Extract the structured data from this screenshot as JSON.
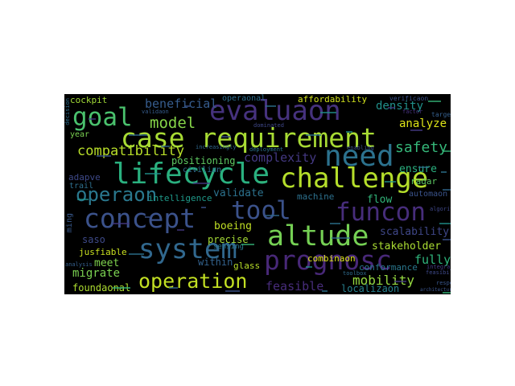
{
  "cloud": {
    "words": [
      {
        "text": "case requirement",
        "color": "#a8db34"
      },
      {
        "text": "evaluaon",
        "color": "#46327e"
      },
      {
        "text": "lifecycle",
        "color": "#2ab07f"
      },
      {
        "text": "challenge",
        "color": "#b5de2b"
      },
      {
        "text": "need",
        "color": "#2c728e"
      },
      {
        "text": "concept",
        "color": "#3b528b"
      },
      {
        "text": "altude",
        "color": "#75d054"
      },
      {
        "text": "system",
        "color": "#31688e"
      },
      {
        "text": "prognosc",
        "color": "#482878"
      },
      {
        "text": "funcon",
        "color": "#472d7b"
      },
      {
        "text": "tool",
        "color": "#3b528b"
      },
      {
        "text": "goal",
        "color": "#4ac16d"
      },
      {
        "text": "model",
        "color": "#86d549"
      },
      {
        "text": "operaon",
        "color": "#2a788e"
      },
      {
        "text": "operation",
        "color": "#c2df23"
      },
      {
        "text": "compatibility",
        "color": "#b8de29"
      },
      {
        "text": "beneficial",
        "color": "#365c8d"
      },
      {
        "text": "complexity",
        "color": "#443983"
      },
      {
        "text": "safety",
        "color": "#35b779"
      },
      {
        "text": "density",
        "color": "#21918c"
      },
      {
        "text": "analyze",
        "color": "#dde318"
      },
      {
        "text": "affordability",
        "color": "#d0e11c"
      },
      {
        "text": "operaonal",
        "color": "#2e6e8e"
      },
      {
        "text": "cockpit",
        "color": "#a2da37"
      },
      {
        "text": "positioning",
        "color": "#5ec962"
      },
      {
        "text": "ensure",
        "color": "#2ab07f"
      },
      {
        "text": "validate",
        "color": "#2c728e"
      },
      {
        "text": "adapve",
        "color": "#3e4989"
      },
      {
        "text": "civilian",
        "color": "#2f6c8e"
      },
      {
        "text": "trail",
        "color": "#2e6f8e"
      },
      {
        "text": "intelligence",
        "color": "#1f9a8a"
      },
      {
        "text": "boeing",
        "color": "#c0df25"
      },
      {
        "text": "precise",
        "color": "#a5db36"
      },
      {
        "text": "saso",
        "color": "#3e4a89"
      },
      {
        "text": "meet",
        "color": "#7fd34e"
      },
      {
        "text": "within",
        "color": "#33628d"
      },
      {
        "text": "migrate",
        "color": "#7ad151"
      },
      {
        "text": "jusfiable",
        "color": "#c8e020"
      },
      {
        "text": "foundaonal",
        "color": "#addc30"
      },
      {
        "text": "glass",
        "color": "#b8de29"
      },
      {
        "text": "feasible",
        "color": "#472c7a"
      },
      {
        "text": "mobility",
        "color": "#95d840"
      },
      {
        "text": "localizaon",
        "color": "#27808e"
      },
      {
        "text": "fully",
        "color": "#2fb47c"
      },
      {
        "text": "stakeholder",
        "color": "#aadc32"
      },
      {
        "text": "scalability",
        "color": "#3f4788"
      },
      {
        "text": "combinaon",
        "color": "#dde318"
      },
      {
        "text": "flow",
        "color": "#32b67a"
      },
      {
        "text": "machine",
        "color": "#2d718e"
      },
      {
        "text": "automaon",
        "color": "#3a538b"
      },
      {
        "text": "radar",
        "color": "#5ec962"
      },
      {
        "text": "conformance",
        "color": "#2a788e"
      },
      {
        "text": "year",
        "color": "#7ad151"
      },
      {
        "text": "ming",
        "color": "#38598c"
      },
      {
        "text": "sensing",
        "color": "#2a788e"
      },
      {
        "text": "verificaon",
        "color": "#3b528b"
      },
      {
        "text": "targeted",
        "color": "#355f8d"
      },
      {
        "text": "factor",
        "color": "#46337f"
      },
      {
        "text": "integration",
        "color": "#443983"
      },
      {
        "text": "algorithm",
        "color": "#3f4788"
      },
      {
        "text": "feasibility",
        "color": "#3e4989"
      },
      {
        "text": "respect",
        "color": "#39568c"
      },
      {
        "text": "architectural",
        "color": "#3a548c"
      },
      {
        "text": "analysis",
        "color": "#355f8d"
      },
      {
        "text": "toolbox",
        "color": "#2f6c8e"
      },
      {
        "text": "enabling",
        "color": "#3b528b"
      },
      {
        "text": "increasingly",
        "color": "#31688e"
      },
      {
        "text": "deployment",
        "color": "#2c728e"
      },
      {
        "text": "dominated",
        "color": "#3f4788"
      },
      {
        "text": "validaon",
        "color": "#365c8d"
      },
      {
        "text": "decision",
        "color": "#2e6e8e"
      }
    ]
  }
}
